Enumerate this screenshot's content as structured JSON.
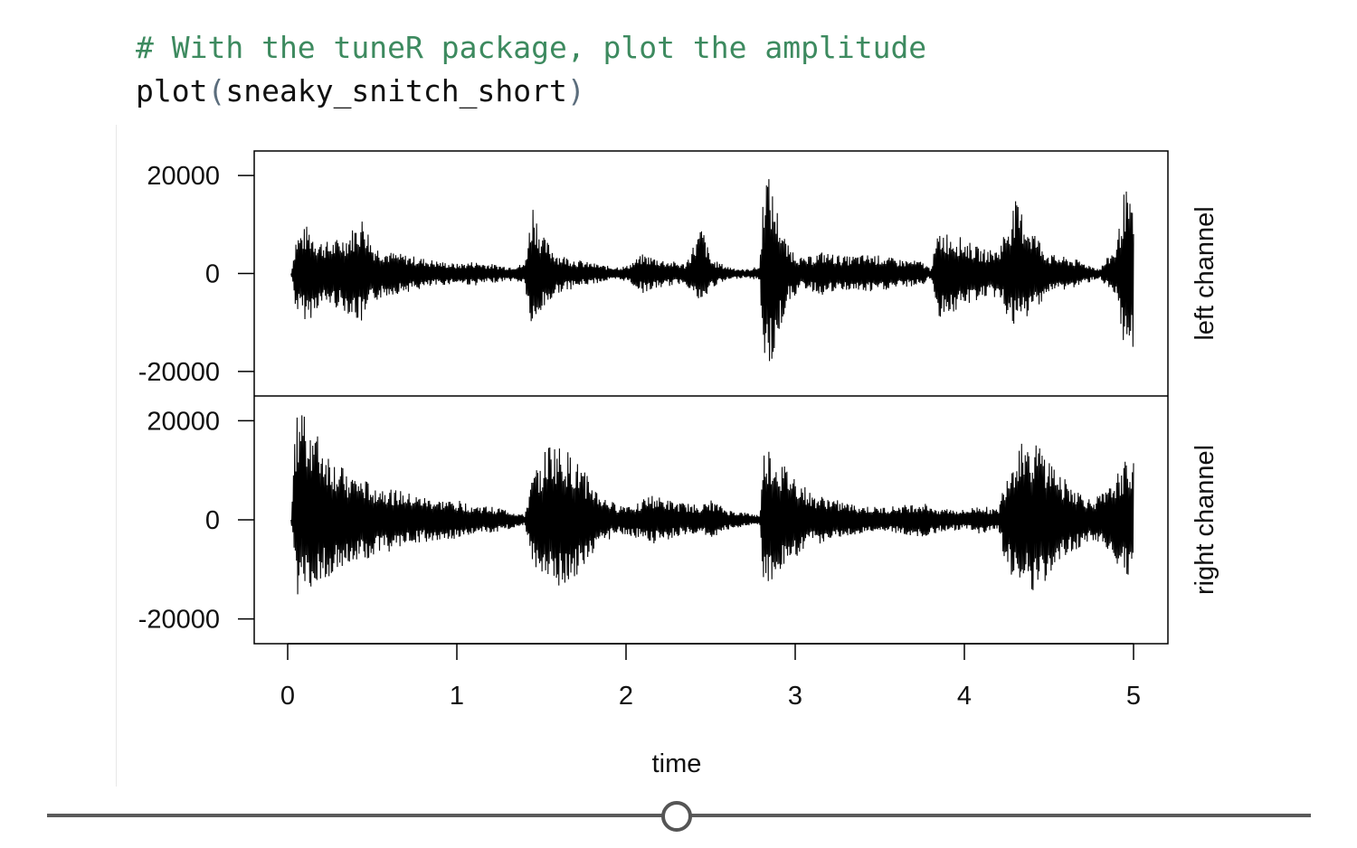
{
  "code": {
    "comment": "# With the tuneR package, plot the amplitude",
    "call_name": "plot",
    "call_open": "(",
    "call_arg": "sneaky_snitch_short",
    "call_close": ")"
  },
  "chart_data": {
    "type": "line",
    "xlabel": "time",
    "xlim": [
      0,
      5
    ],
    "x_ticks": [
      "0",
      "1",
      "2",
      "3",
      "4",
      "5"
    ],
    "y_ticks": [
      "20000",
      "0",
      "-20000"
    ],
    "panels": [
      {
        "name": "left channel",
        "ylim": [
          -25000,
          25000
        ],
        "envelope": {
          "x": [
            0.02,
            0.05,
            0.12,
            0.18,
            0.25,
            0.35,
            0.45,
            0.5,
            0.6,
            0.75,
            0.9,
            1.0,
            1.1,
            1.2,
            1.3,
            1.4,
            1.45,
            1.5,
            1.6,
            1.75,
            1.9,
            2.0,
            2.1,
            2.2,
            2.35,
            2.45,
            2.5,
            2.6,
            2.7,
            2.79,
            2.82,
            2.88,
            2.95,
            3.05,
            3.15,
            3.3,
            3.45,
            3.6,
            3.75,
            3.8,
            3.85,
            3.95,
            4.1,
            4.2,
            4.3,
            4.5,
            4.65,
            4.8,
            4.9,
            4.95,
            5.0
          ],
          "max": [
            0,
            8000,
            10000,
            7000,
            6500,
            8000,
            12000,
            6000,
            4500,
            3500,
            2500,
            2000,
            2500,
            2000,
            1500,
            2000,
            15000,
            8000,
            4000,
            2500,
            1500,
            1500,
            4000,
            3000,
            2000,
            10000,
            3000,
            1500,
            800,
            1500,
            23000,
            15000,
            6000,
            3000,
            4500,
            3500,
            4000,
            3000,
            2500,
            1000,
            9000,
            8000,
            5000,
            5000,
            15000,
            4000,
            3000,
            1000,
            6000,
            18000,
            12000
          ],
          "min": [
            0,
            -8000,
            -10000,
            -7000,
            -6500,
            -8000,
            -11000,
            -6000,
            -4500,
            -3500,
            -2500,
            -2000,
            -2500,
            -2000,
            -1500,
            -2000,
            -14000,
            -8000,
            -4000,
            -2500,
            -1500,
            -1500,
            -4000,
            -3000,
            -2000,
            -7000,
            -3000,
            -1500,
            -800,
            -1500,
            -21000,
            -17000,
            -6000,
            -3000,
            -4500,
            -3500,
            -4000,
            -3000,
            -2500,
            -1000,
            -9000,
            -8000,
            -5000,
            -5000,
            -12000,
            -4000,
            -3000,
            -1000,
            -6000,
            -18000,
            -15000
          ]
        }
      },
      {
        "name": "right channel",
        "ylim": [
          -25000,
          25000
        ],
        "envelope": {
          "x": [
            0.02,
            0.05,
            0.1,
            0.18,
            0.3,
            0.45,
            0.6,
            0.75,
            0.9,
            1.0,
            1.1,
            1.25,
            1.4,
            1.45,
            1.55,
            1.65,
            1.75,
            1.85,
            1.95,
            2.05,
            2.15,
            2.3,
            2.45,
            2.5,
            2.6,
            2.7,
            2.79,
            2.82,
            2.9,
            3.0,
            3.1,
            3.2,
            3.35,
            3.5,
            3.65,
            3.75,
            3.85,
            4.0,
            4.1,
            4.2,
            4.25,
            4.35,
            4.45,
            4.6,
            4.75,
            4.85,
            4.95,
            5.0
          ],
          "max": [
            0,
            22000,
            24000,
            17000,
            11000,
            8000,
            6500,
            5000,
            4000,
            4000,
            3000,
            2500,
            1000,
            9000,
            16000,
            14000,
            10000,
            5000,
            3000,
            3500,
            5000,
            3500,
            3000,
            4000,
            2000,
            1500,
            1000,
            16000,
            12000,
            9000,
            5000,
            4500,
            3000,
            2500,
            3000,
            3500,
            2500,
            2000,
            3000,
            2000,
            10000,
            18000,
            15000,
            8000,
            4000,
            6000,
            12000,
            14000
          ],
          "min": [
            0,
            -15000,
            -16000,
            -13000,
            -10000,
            -8000,
            -6500,
            -5000,
            -4000,
            -4000,
            -3000,
            -2500,
            -1000,
            -9000,
            -14000,
            -13000,
            -10000,
            -5000,
            -3000,
            -3500,
            -5000,
            -3500,
            -3000,
            -4000,
            -2000,
            -1500,
            -1000,
            -16000,
            -11000,
            -9000,
            -5000,
            -4500,
            -3000,
            -2500,
            -3000,
            -3500,
            -2500,
            -2000,
            -3000,
            -2000,
            -10000,
            -14000,
            -15000,
            -8000,
            -4000,
            -6000,
            -12000,
            -12000
          ]
        }
      }
    ]
  },
  "slider": {
    "position": 0.5
  }
}
